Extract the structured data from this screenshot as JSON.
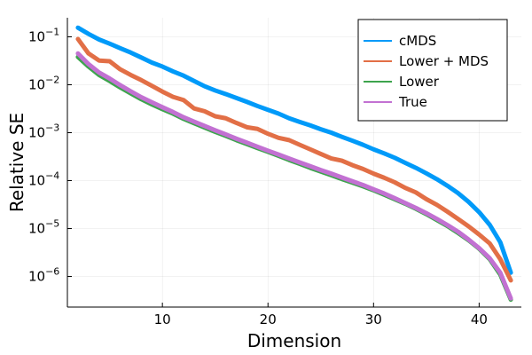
{
  "chart_data": {
    "type": "line",
    "title": "",
    "xlabel": "Dimension",
    "ylabel": "Relative SE",
    "xlim": [
      1,
      44
    ],
    "ylim": [
      2.3e-07,
      0.25
    ],
    "yscale": "log",
    "grid": true,
    "legend_position": "top-right",
    "x_ticks": [
      10,
      20,
      30,
      40
    ],
    "y_ticks": [
      {
        "base": "10",
        "exp": "−1",
        "value": 0.1
      },
      {
        "base": "10",
        "exp": "−2",
        "value": 0.01
      },
      {
        "base": "10",
        "exp": "−3",
        "value": 0.001
      },
      {
        "base": "10",
        "exp": "−4",
        "value": 0.0001
      },
      {
        "base": "10",
        "exp": "−5",
        "value": 1e-05
      },
      {
        "base": "10",
        "exp": "−6",
        "value": 1e-06
      }
    ],
    "x": [
      2,
      3,
      4,
      5,
      6,
      7,
      8,
      9,
      10,
      11,
      12,
      13,
      14,
      15,
      16,
      17,
      18,
      19,
      20,
      21,
      22,
      23,
      24,
      25,
      26,
      27,
      28,
      29,
      30,
      31,
      32,
      33,
      34,
      35,
      36,
      37,
      38,
      39,
      40,
      41,
      42,
      43
    ],
    "series": [
      {
        "name": "cMDS",
        "color": "#009AF9",
        "values": [
          0.155,
          0.115,
          0.088,
          0.072,
          0.058,
          0.047,
          0.037,
          0.029,
          0.024,
          0.019,
          0.0155,
          0.012,
          0.0093,
          0.0076,
          0.0064,
          0.0053,
          0.0044,
          0.0036,
          0.003,
          0.0025,
          0.002,
          0.00168,
          0.00142,
          0.00118,
          0.001,
          0.00082,
          0.00068,
          0.00056,
          0.00045,
          0.00037,
          0.0003,
          0.000235,
          0.000185,
          0.000142,
          0.000107,
          7.8e-05,
          5.5e-05,
          3.6e-05,
          2.2e-05,
          1.2e-05,
          5.2e-06,
          1.2e-06
        ]
      },
      {
        "name": "Lower + MDS",
        "color": "#E26F46",
        "values": [
          0.09,
          0.045,
          0.032,
          0.031,
          0.021,
          0.016,
          0.0125,
          0.0095,
          0.0072,
          0.0056,
          0.0048,
          0.0032,
          0.0028,
          0.0022,
          0.002,
          0.0016,
          0.0013,
          0.0012,
          0.00095,
          0.00078,
          0.0007,
          0.00056,
          0.00045,
          0.00036,
          0.00029,
          0.00026,
          0.00021,
          0.000175,
          0.00014,
          0.000115,
          9.23e-05,
          7.06e-05,
          5.69e-05,
          4.11e-05,
          3.12e-05,
          2.25e-05,
          1.59e-05,
          1.11e-05,
          7.5e-06,
          4.9e-06,
          2.3e-06,
          8.3e-07
        ]
      },
      {
        "name": "Lower",
        "color": "#3DA44D",
        "values": [
          0.038,
          0.024,
          0.016,
          0.012,
          0.0088,
          0.0066,
          0.005,
          0.0039,
          0.0031,
          0.0025,
          0.00195,
          0.00158,
          0.00128,
          0.00104,
          0.00086,
          0.0007,
          0.00058,
          0.00048,
          0.0004,
          0.00033,
          0.00027,
          0.000225,
          0.000185,
          0.000155,
          0.00013,
          0.000108,
          9.1e-05,
          7.6e-05,
          6.3e-05,
          5.1e-05,
          4.1e-05,
          3.3e-05,
          2.6e-05,
          2e-05,
          1.5e-05,
          1.13e-05,
          8.1e-06,
          5.7e-06,
          3.8e-06,
          2.3e-06,
          1.1e-06,
          3.3e-07
        ]
      },
      {
        "name": "True",
        "color": "#C271D2",
        "values": [
          0.045,
          0.027,
          0.018,
          0.0135,
          0.0098,
          0.0073,
          0.0055,
          0.0043,
          0.0034,
          0.0027,
          0.0021,
          0.0017,
          0.00138,
          0.00112,
          0.00092,
          0.00075,
          0.00062,
          0.00051,
          0.00042,
          0.00035,
          0.00029,
          0.00024,
          0.0002,
          0.000166,
          0.00014,
          0.000116,
          9.7e-05,
          8.1e-05,
          6.6e-05,
          5.4e-05,
          4.3e-05,
          3.4e-05,
          2.7e-05,
          2.09e-05,
          1.59e-05,
          1.18e-05,
          8.6e-06,
          5.9e-06,
          3.9e-06,
          2.4e-06,
          1.2e-06,
          3.5e-07
        ]
      }
    ]
  }
}
